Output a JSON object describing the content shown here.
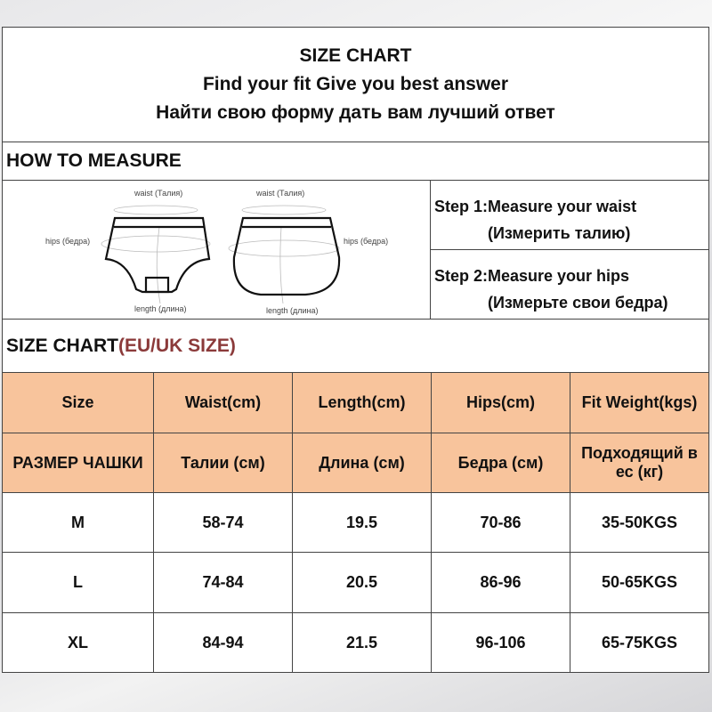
{
  "title": {
    "line1": "SIZE CHART",
    "line2": "Find your fit Give you best answer",
    "line3": "Найти свою форму дать вам лучший ответ"
  },
  "how_to_measure": {
    "heading": "HOW TO MEASURE",
    "diagram_labels": {
      "waist": "waist (Талия)",
      "hips": "hips (бедра)",
      "length": "length (длина)"
    },
    "step1_en": "Step 1:Measure your waist",
    "step1_ru": "(Измерить талию)",
    "step2_en": "Step 2:Measure your hips",
    "step2_ru": "(Измерьте свои бедра)"
  },
  "size_chart": {
    "heading": "SIZE CHART",
    "heading_suffix": "(EU/UK SIZE)",
    "accent_color": "#8b3a3a",
    "header_color": "#f8c49c",
    "headers_en": [
      "Size",
      "Waist(cm)",
      "Length(cm)",
      "Hips(cm)",
      "Fit  Weight(kgs)"
    ],
    "headers_ru": [
      "РАЗМЕР ЧАШКИ",
      "Талии (см)",
      "Длина (см)",
      "Бедра (см)",
      "Подходящий в ес (кг)"
    ],
    "rows": [
      [
        "M",
        "58-74",
        "19.5",
        "70-86",
        "35-50KGS"
      ],
      [
        "L",
        "74-84",
        "20.5",
        "86-96",
        "50-65KGS"
      ],
      [
        "XL",
        "84-94",
        "21.5",
        "96-106",
        "65-75KGS"
      ]
    ]
  }
}
